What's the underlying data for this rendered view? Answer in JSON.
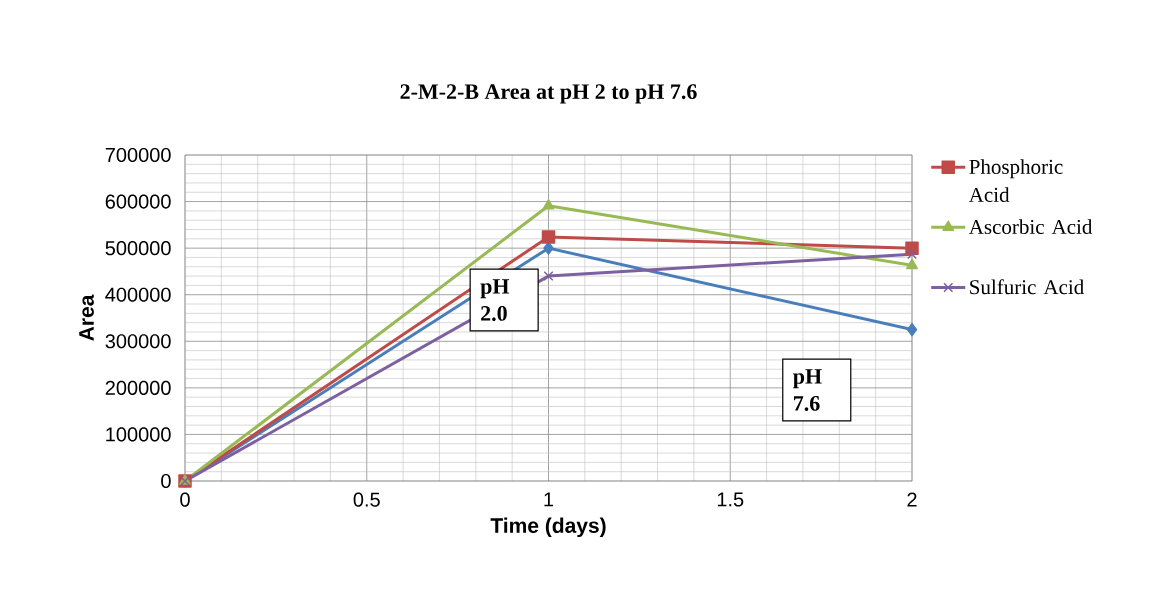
{
  "chart_data": {
    "type": "line",
    "title": "2-M-2-B Area at pH 2 to pH 7.6",
    "xlabel": "Time (days)",
    "ylabel": "Area",
    "x": [
      0,
      1,
      2
    ],
    "series": [
      {
        "color": "#4a7ebb",
        "marker": "diamond",
        "values": [
          0,
          500000,
          325000
        ]
      },
      {
        "name": "Phosphoric Acid",
        "color": "#be4b48",
        "marker": "square",
        "values": [
          0,
          524000,
          500000
        ]
      },
      {
        "name": "Ascorbic Acid",
        "color": "#98b954",
        "marker": "triangle",
        "values": [
          0,
          591000,
          463000
        ]
      },
      {
        "name": "Sulfuric Acid",
        "color": "#7d60a0",
        "marker": "cross",
        "values": [
          0,
          440000,
          487000
        ]
      }
    ],
    "xlim": [
      0,
      2
    ],
    "xticks": [
      0,
      0.5,
      1,
      1.5,
      2
    ],
    "ylim": [
      0,
      700000
    ],
    "yticks": [
      0,
      100000,
      200000,
      300000,
      400000,
      500000,
      600000,
      700000
    ],
    "grid": true,
    "legend": "right",
    "annotations": [
      "pH 2.0",
      "pH 7.6"
    ]
  }
}
